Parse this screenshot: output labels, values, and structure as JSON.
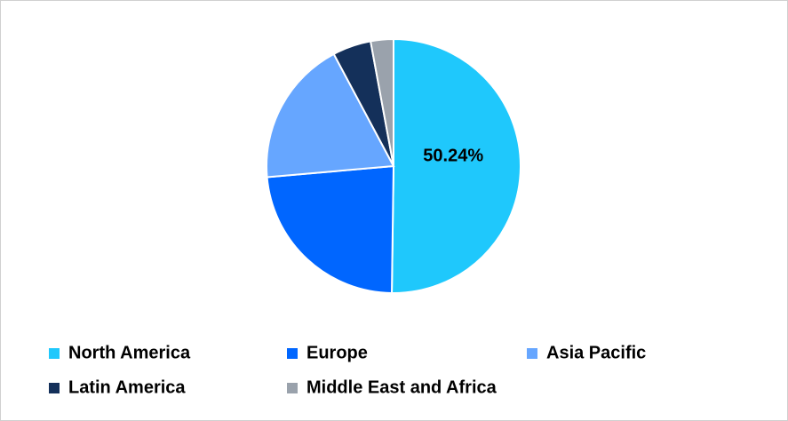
{
  "chart_data": {
    "type": "pie",
    "categories": [
      "North America",
      "Europe",
      "Asia Pacific",
      "Latin America",
      "Middle East and Africa"
    ],
    "values": [
      50.24,
      23.4,
      18.6,
      4.9,
      2.9
    ],
    "value_labels": [
      "50.24%",
      null,
      null,
      null,
      null
    ],
    "colors": [
      "#1fc8fc",
      "#0066ff",
      "#66a6ff",
      "#14305a",
      "#9aa2ac"
    ],
    "legend": "bottom"
  }
}
